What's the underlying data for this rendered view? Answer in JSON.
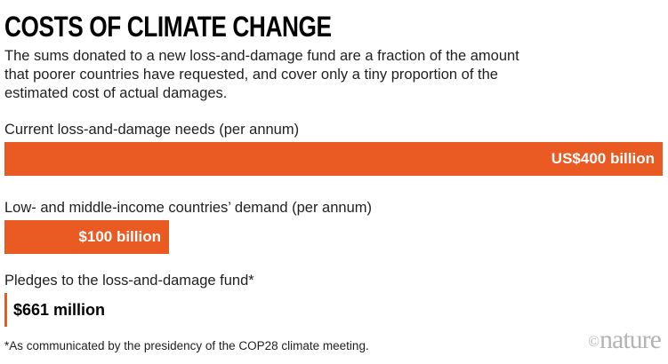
{
  "header": {
    "title": "COSTS OF CLIMATE CHANGE",
    "subtitle_lines": [
      "The sums donated to a new loss-and-damage fund are a fraction of the amount",
      "that poorer countries have requested, and cover only a tiny proportion of the",
      "estimated cost of actual damages."
    ]
  },
  "chart_data": {
    "type": "bar",
    "orientation": "horizontal",
    "title": "COSTS OF CLIMATE CHANGE",
    "xlim_billion_usd": [
      0,
      400
    ],
    "bar_color": "#EA5B24",
    "grid": false,
    "legend": "none",
    "rows": [
      {
        "category": "Current loss-and-damage needs (per annum)",
        "value_billion_usd": 400,
        "value_label": "US$400 billion",
        "width_pct": 100,
        "value_label_position": "inside-right"
      },
      {
        "category": "Low- and middle-income countries’ demand (per annum)",
        "value_billion_usd": 100,
        "value_label": "$100 billion",
        "width_pct": 25,
        "value_label_position": "inside-right"
      },
      {
        "category": "Pledges to the loss-and-damage fund*",
        "value_billion_usd": 0.661,
        "value_label": "$661 million",
        "width_pct": 0.17,
        "value_label_position": "outside-right"
      }
    ]
  },
  "footer": {
    "footnote": "*As communicated by the presidency of the COP28 climate meeting.",
    "logo_symbol": "©",
    "logo_name": "nature"
  },
  "colors": {
    "bar": "#EA5B24",
    "title": "#000000",
    "body_text": "#1f1f1f",
    "bar_value_inside": "#ffffff",
    "bar_value_outside": "#000000",
    "logo": "#b3b3b3"
  }
}
